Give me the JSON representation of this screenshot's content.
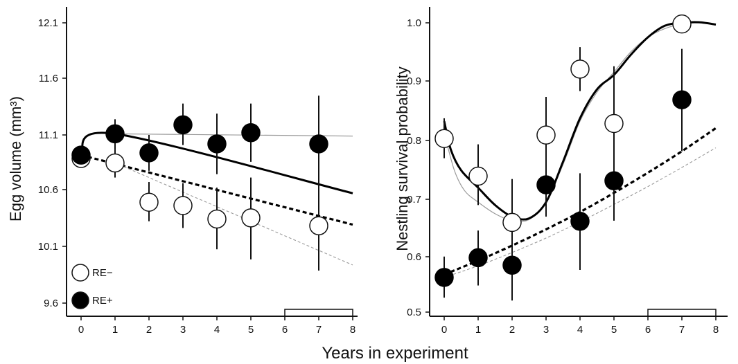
{
  "chart_data": [
    {
      "type": "scatter",
      "ylabel": "Egg volume (mm³)",
      "xlabel": "Years in experiment",
      "x_ticks": [
        "0",
        "1",
        "2",
        "3",
        "4",
        "5",
        "6",
        "7",
        "8"
      ],
      "y_ticks": [
        "9.6",
        "10.1",
        "10.6",
        "11.1",
        "11.6",
        "12.1"
      ],
      "xlim": [
        -0.35,
        8.1
      ],
      "ylim": [
        9.55,
        12.2
      ],
      "legend": {
        "placement": "bottom-left",
        "entries": [
          {
            "name": "RE−",
            "fill": "#ffffff"
          },
          {
            "name": "RE+",
            "fill": "#000000"
          }
        ]
      },
      "bracket": [
        6,
        8
      ],
      "series": [
        {
          "name": "RE−",
          "fill": "#ffffff",
          "points": [
            {
              "x": 0,
              "y": 10.89,
              "lo": 10.82,
              "hi": 10.97
            },
            {
              "x": 1,
              "y": 10.85,
              "lo": 10.72,
              "hi": 10.97
            },
            {
              "x": 2,
              "y": 10.5,
              "lo": 10.33,
              "hi": 10.68
            },
            {
              "x": 3,
              "y": 10.47,
              "lo": 10.27,
              "hi": 10.67
            },
            {
              "x": 4,
              "y": 10.35,
              "lo": 10.08,
              "hi": 10.63
            },
            {
              "x": 5,
              "y": 10.36,
              "lo": 9.99,
              "hi": 10.72
            },
            {
              "x": 7,
              "y": 10.29,
              "lo": 9.89,
              "hi": 10.69
            }
          ]
        },
        {
          "name": "RE+",
          "fill": "#000000",
          "points": [
            {
              "x": 0,
              "y": 10.92,
              "lo": 10.85,
              "hi": 11.0
            },
            {
              "x": 1,
              "y": 11.11,
              "lo": 10.97,
              "hi": 11.24
            },
            {
              "x": 2,
              "y": 10.94,
              "lo": 10.78,
              "hi": 11.1
            },
            {
              "x": 3,
              "y": 11.19,
              "lo": 11.01,
              "hi": 11.38
            },
            {
              "x": 4,
              "y": 11.02,
              "lo": 10.75,
              "hi": 11.29
            },
            {
              "x": 5,
              "y": 11.12,
              "lo": 10.86,
              "hi": 11.38
            },
            {
              "x": 7,
              "y": 11.02,
              "lo": 10.6,
              "hi": 11.45
            }
          ]
        }
      ],
      "fits": [
        {
          "style": "thin-solid",
          "color": "#9a9a9a",
          "points": [
            [
              1,
              11.11
            ],
            [
              8,
              11.09
            ]
          ]
        },
        {
          "style": "thick-solid",
          "color": "#000000",
          "points": [
            [
              0,
              10.92
            ],
            [
              1,
              11.11
            ],
            [
              8,
              10.58
            ]
          ]
        },
        {
          "style": "thick-dashed",
          "color": "#000000",
          "points": [
            [
              0,
              10.92
            ],
            [
              8,
              10.3
            ]
          ]
        },
        {
          "style": "thin-dashed",
          "color": "#9a9a9a",
          "points": [
            [
              1,
              10.85
            ],
            [
              8,
              9.94
            ]
          ]
        }
      ]
    },
    {
      "type": "scatter",
      "ylabel": "Nestling survival probability",
      "xlabel": "Years in experiment",
      "x_ticks": [
        "0",
        "1",
        "2",
        "3",
        "4",
        "5",
        "6",
        "7",
        "8"
      ],
      "y_ticks": [
        "0.5",
        "0.6",
        "0.7",
        "0.8",
        "0.9",
        "1.0"
      ],
      "xlim": [
        -0.35,
        8.1
      ],
      "ylim": [
        0.49,
        1.025
      ],
      "bracket": [
        6,
        8
      ],
      "series": [
        {
          "name": "RE−",
          "fill": "#ffffff",
          "points": [
            {
              "x": 0,
              "y": 0.8,
              "lo": 0.766,
              "hi": 0.835
            },
            {
              "x": 1,
              "y": 0.735,
              "lo": 0.685,
              "hi": 0.79
            },
            {
              "x": 2,
              "y": 0.655,
              "lo": 0.585,
              "hi": 0.73
            },
            {
              "x": 3,
              "y": 0.806,
              "lo": 0.715,
              "hi": 0.872
            },
            {
              "x": 4,
              "y": 0.92,
              "lo": 0.882,
              "hi": 0.958
            },
            {
              "x": 5,
              "y": 0.826,
              "lo": 0.7,
              "hi": 0.925
            },
            {
              "x": 7,
              "y": 0.998,
              "lo": 0.998,
              "hi": 0.998
            }
          ]
        },
        {
          "name": "RE+",
          "fill": "#000000",
          "points": [
            {
              "x": 0,
              "y": 0.56,
              "lo": 0.525,
              "hi": 0.596
            },
            {
              "x": 1,
              "y": 0.594,
              "lo": 0.546,
              "hi": 0.641
            },
            {
              "x": 2,
              "y": 0.581,
              "lo": 0.52,
              "hi": 0.639
            },
            {
              "x": 3,
              "y": 0.72,
              "lo": 0.665,
              "hi": 0.79
            },
            {
              "x": 4,
              "y": 0.657,
              "lo": 0.573,
              "hi": 0.74
            },
            {
              "x": 5,
              "y": 0.727,
              "lo": 0.658,
              "hi": 0.787
            },
            {
              "x": 7,
              "y": 0.867,
              "lo": 0.778,
              "hi": 0.955
            }
          ]
        }
      ],
      "fits": [
        {
          "style": "thin-solid",
          "color": "#9a9a9a",
          "points": [
            [
              0,
              0.81
            ],
            [
              0.3,
              0.745
            ],
            [
              0.6,
              0.71
            ],
            [
              1,
              0.69
            ],
            [
              1.5,
              0.67
            ],
            [
              2,
              0.658
            ],
            [
              2.5,
              0.66
            ],
            [
              3,
              0.69
            ],
            [
              3.5,
              0.755
            ],
            [
              4,
              0.83
            ],
            [
              4.5,
              0.88
            ],
            [
              5,
              0.915
            ],
            [
              5.5,
              0.95
            ],
            [
              6,
              0.975
            ],
            [
              6.5,
              0.99
            ],
            [
              7,
              0.998
            ],
            [
              7.5,
              1.0
            ],
            [
              8,
              0.997
            ]
          ]
        },
        {
          "style": "thick-solid",
          "color": "#000000",
          "points": [
            [
              0,
              0.83
            ],
            [
              0.2,
              0.78
            ],
            [
              0.5,
              0.745
            ],
            [
              1,
              0.715
            ],
            [
              1.5,
              0.685
            ],
            [
              2,
              0.665
            ],
            [
              2.5,
              0.662
            ],
            [
              3,
              0.69
            ],
            [
              3.5,
              0.76
            ],
            [
              4,
              0.835
            ],
            [
              4.5,
              0.885
            ],
            [
              5,
              0.91
            ],
            [
              5.5,
              0.945
            ],
            [
              6,
              0.975
            ],
            [
              6.5,
              0.995
            ],
            [
              7,
              1.0
            ],
            [
              7.5,
              1.001
            ],
            [
              8,
              0.997
            ]
          ]
        },
        {
          "style": "thick-dashed",
          "color": "#000000",
          "points": [
            [
              0,
              0.565
            ],
            [
              1,
              0.589
            ],
            [
              2,
              0.615
            ],
            [
              3,
              0.643
            ],
            [
              4,
              0.673
            ],
            [
              5,
              0.706
            ],
            [
              6,
              0.741
            ],
            [
              7,
              0.778
            ],
            [
              8,
              0.818
            ]
          ]
        },
        {
          "style": "thin-dashed",
          "color": "#9a9a9a",
          "points": [
            [
              0,
              0.56
            ],
            [
              1,
              0.58
            ],
            [
              2,
              0.603
            ],
            [
              3,
              0.628
            ],
            [
              4,
              0.656
            ],
            [
              5,
              0.686
            ],
            [
              6,
              0.717
            ],
            [
              7,
              0.75
            ],
            [
              8,
              0.784
            ]
          ]
        }
      ]
    }
  ]
}
